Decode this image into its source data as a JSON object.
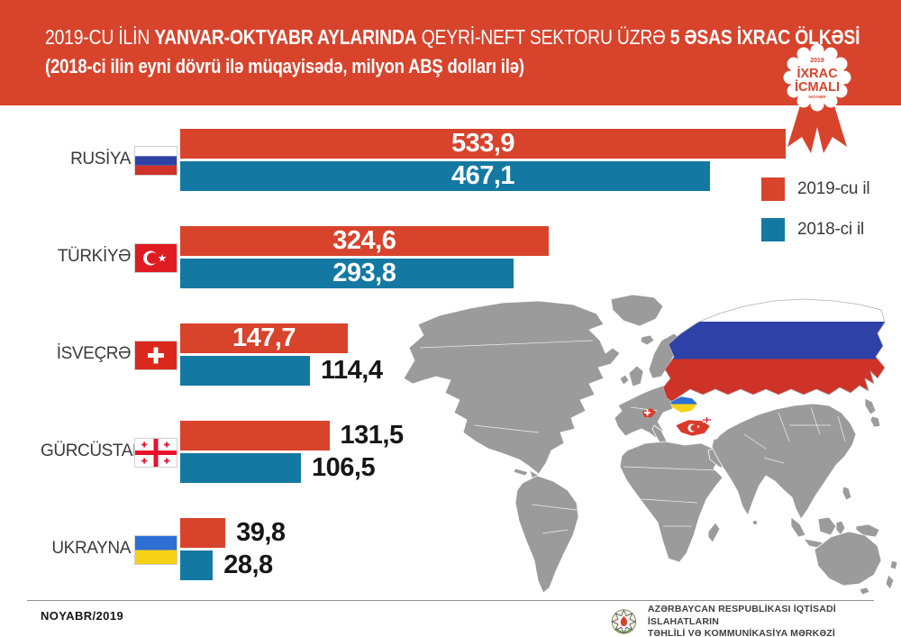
{
  "header": {
    "title_parts": [
      {
        "text": "2019-CU İLİN ",
        "bold": false
      },
      {
        "text": "YANVAR-OKTYABR AYLARINDA",
        "bold": true
      },
      {
        "text": "  QEYRİ-NEFT SEKTORU ÜZRƏ ",
        "bold": false
      },
      {
        "text": "5 ƏSAS İXRAC ÖLKƏSİ",
        "bold": true
      }
    ],
    "subtitle": "(2018-ci ilin eyni dövrü ilə müqayisədə, milyon ABŞ dolları ilə)",
    "band_color": "#d8432c"
  },
  "badge": {
    "year": "2019",
    "title_line1": "İXRAC",
    "title_line2": "İCMALI",
    "month": "NOYABR"
  },
  "legend": {
    "items": [
      {
        "label": "2019-cu il",
        "color": "#d8432c"
      },
      {
        "label": "2018-ci il",
        "color": "#1379a2"
      }
    ]
  },
  "chart_data": {
    "type": "bar",
    "orientation": "horizontal",
    "title": "2019-cu ilin yanvar-oktyabr aylarında qeyri-neft sektoru üzrə 5 əsas ixrac ölkəsi",
    "unit": "milyon ABŞ dolları",
    "categories": [
      "RUSİYA",
      "TÜRKİYƏ",
      "İSVEÇRƏ",
      "GÜRCÜSTAN",
      "UKRAYNA"
    ],
    "flag_icons": [
      "russia-flag",
      "turkey-flag",
      "switzerland-flag",
      "georgia-flag",
      "ukraine-flag"
    ],
    "series": [
      {
        "name": "2019-cu il",
        "color": "#d8432c",
        "values": [
          533.9,
          324.6,
          147.7,
          131.5,
          39.8
        ],
        "display_labels": [
          "533,9",
          "324,6",
          "147,7",
          "131,5",
          "39,8"
        ]
      },
      {
        "name": "2018-ci il",
        "color": "#1379a2",
        "values": [
          467.1,
          293.8,
          114.4,
          106.5,
          28.8
        ],
        "display_labels": [
          "467,1",
          "293,8",
          "114,4",
          "106,5",
          "28,8"
        ]
      }
    ],
    "xlim": [
      0,
      560
    ],
    "grid": false,
    "legend_position": "right-top",
    "value_labels_shown": true
  },
  "map": {
    "base_color": "#9b9b9b",
    "highlighted_countries": [
      "russia",
      "ukraine",
      "turkey",
      "switzerland",
      "georgia"
    ]
  },
  "footer": {
    "date": "NOYABR/2019",
    "org_line1": "AZƏRBAYCAN RESPUBLİKASI İQTİSADİ İSLAHATLARIN",
    "org_line2": "TƏHLİLİ VƏ KOMMUNİKASİYA MƏRKƏZİ"
  }
}
